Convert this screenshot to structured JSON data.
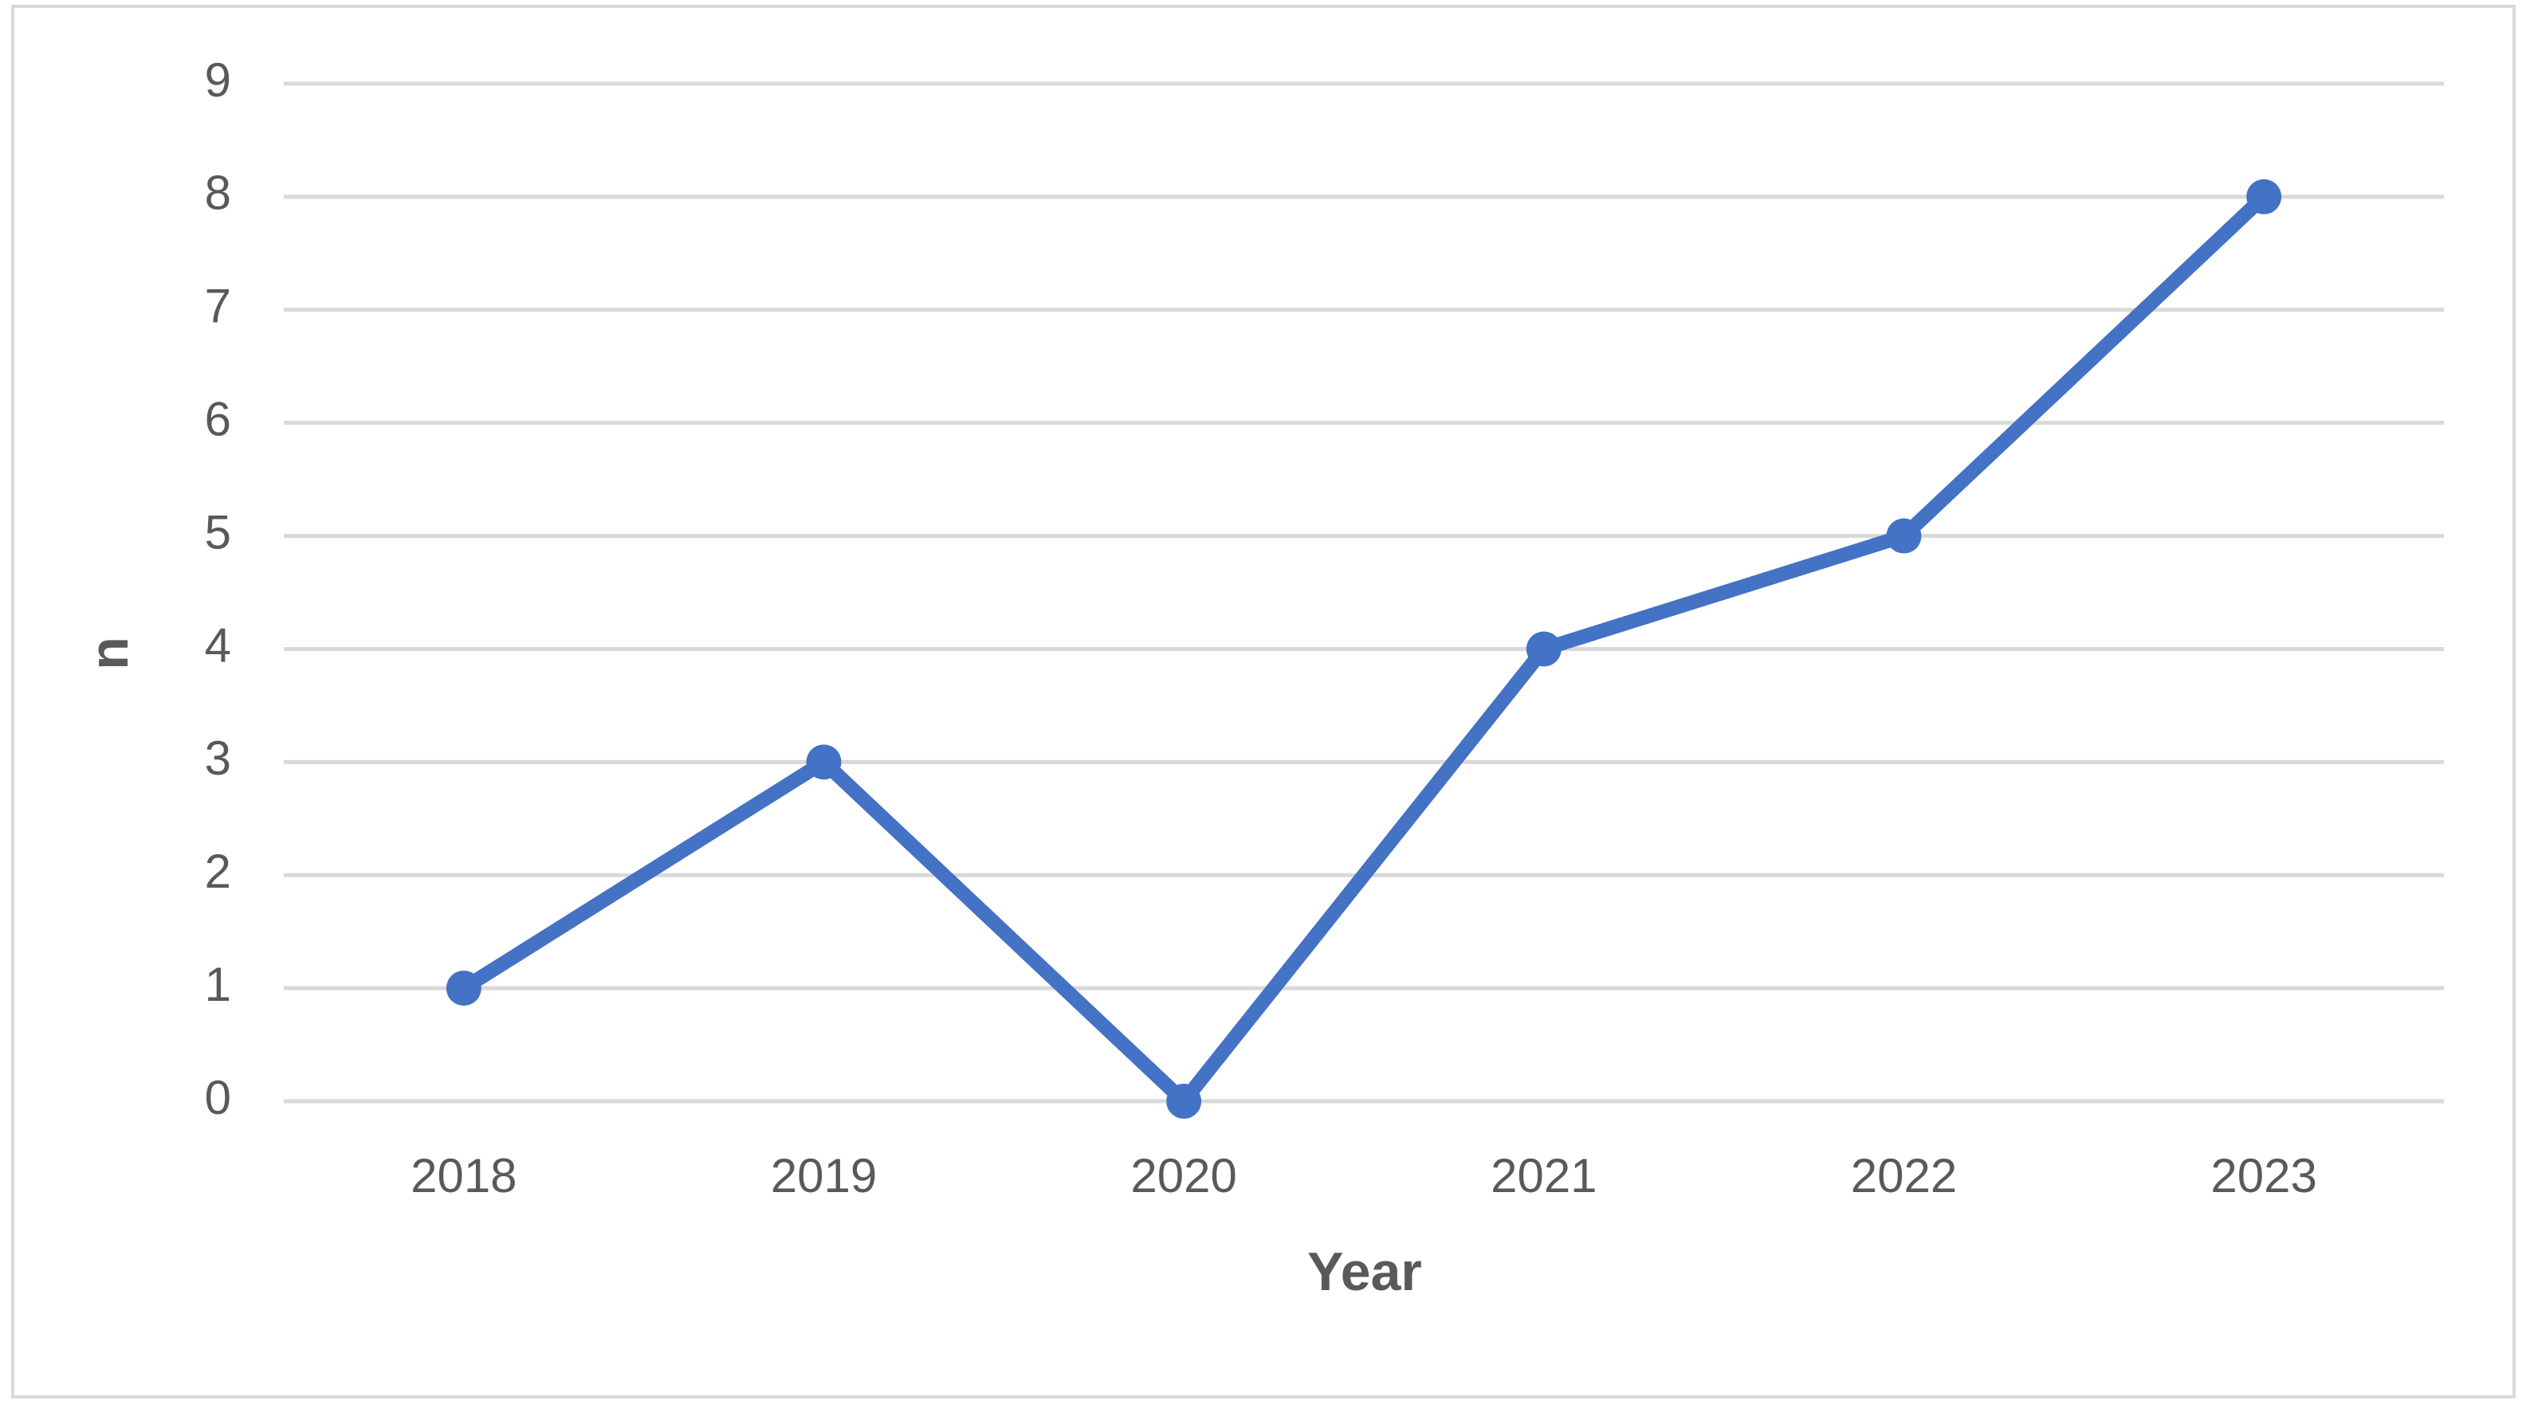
{
  "chart_data": {
    "type": "line",
    "x_label": "Year",
    "y_label": "n",
    "categories": [
      "2018",
      "2019",
      "2020",
      "2021",
      "2022",
      "2023"
    ],
    "series": [
      {
        "color": "#4472c4",
        "values": [
          1,
          3,
          0,
          4,
          5,
          8
        ]
      }
    ],
    "ylim": [
      0,
      9
    ],
    "yticks": [
      0,
      1,
      2,
      3,
      4,
      5,
      6,
      7,
      8,
      9
    ],
    "grid": true
  }
}
